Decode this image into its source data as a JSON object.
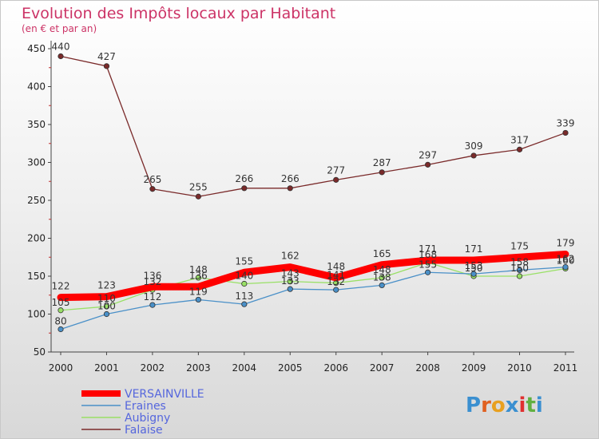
{
  "title": "Evolution des Impôts locaux par Habitant",
  "subtitle": "(en € et par an)",
  "logo": "Proxiti",
  "chart_data": {
    "type": "line",
    "title": "Evolution des Impôts locaux par Habitant",
    "subtitle": "(en € et par an)",
    "x": [
      2000,
      2001,
      2002,
      2003,
      2004,
      2005,
      2006,
      2007,
      2008,
      2009,
      2010,
      2011
    ],
    "ylim": [
      50,
      450
    ],
    "yticks": [
      50,
      100,
      150,
      200,
      250,
      300,
      350,
      400,
      450
    ],
    "grid": false,
    "legend_position": "bottom-left",
    "series": [
      {
        "name": "VERSAINVILLE",
        "color": "#ff0000",
        "values": [
          122,
          123,
          136,
          136,
          155,
          162,
          148,
          165,
          171,
          171,
          175,
          179
        ]
      },
      {
        "name": "Eraines",
        "color": "#4a90c8",
        "values": [
          80,
          100,
          112,
          119,
          113,
          133,
          132,
          138,
          155,
          153,
          158,
          162
        ]
      },
      {
        "name": "Aubigny",
        "color": "#99e066",
        "values": [
          105,
          110,
          132,
          148,
          140,
          143,
          141,
          148,
          168,
          150,
          150,
          160
        ]
      },
      {
        "name": "Falaise",
        "color": "#7a2a2a",
        "values": [
          440,
          427,
          265,
          255,
          266,
          266,
          277,
          287,
          297,
          309,
          317,
          339
        ]
      }
    ],
    "data_labels": {
      "VERSAINVILLE": [
        "122",
        "123",
        "136",
        "136",
        "155",
        "162",
        "148",
        "165",
        "171",
        "171",
        "175",
        "179"
      ],
      "Eraines": [
        "80",
        "100",
        "112",
        "119",
        "113",
        "133",
        "132",
        "138",
        "155",
        "153",
        "158",
        "162"
      ],
      "Aubigny": [
        "105",
        "110",
        "132",
        "148",
        "140",
        "143",
        "141",
        "148",
        "168",
        "150",
        "150",
        "160"
      ],
      "Falaise": [
        "440",
        "427",
        "265",
        "255",
        "266",
        "266",
        "277",
        "287",
        "297",
        "309",
        "317",
        "339"
      ]
    }
  }
}
